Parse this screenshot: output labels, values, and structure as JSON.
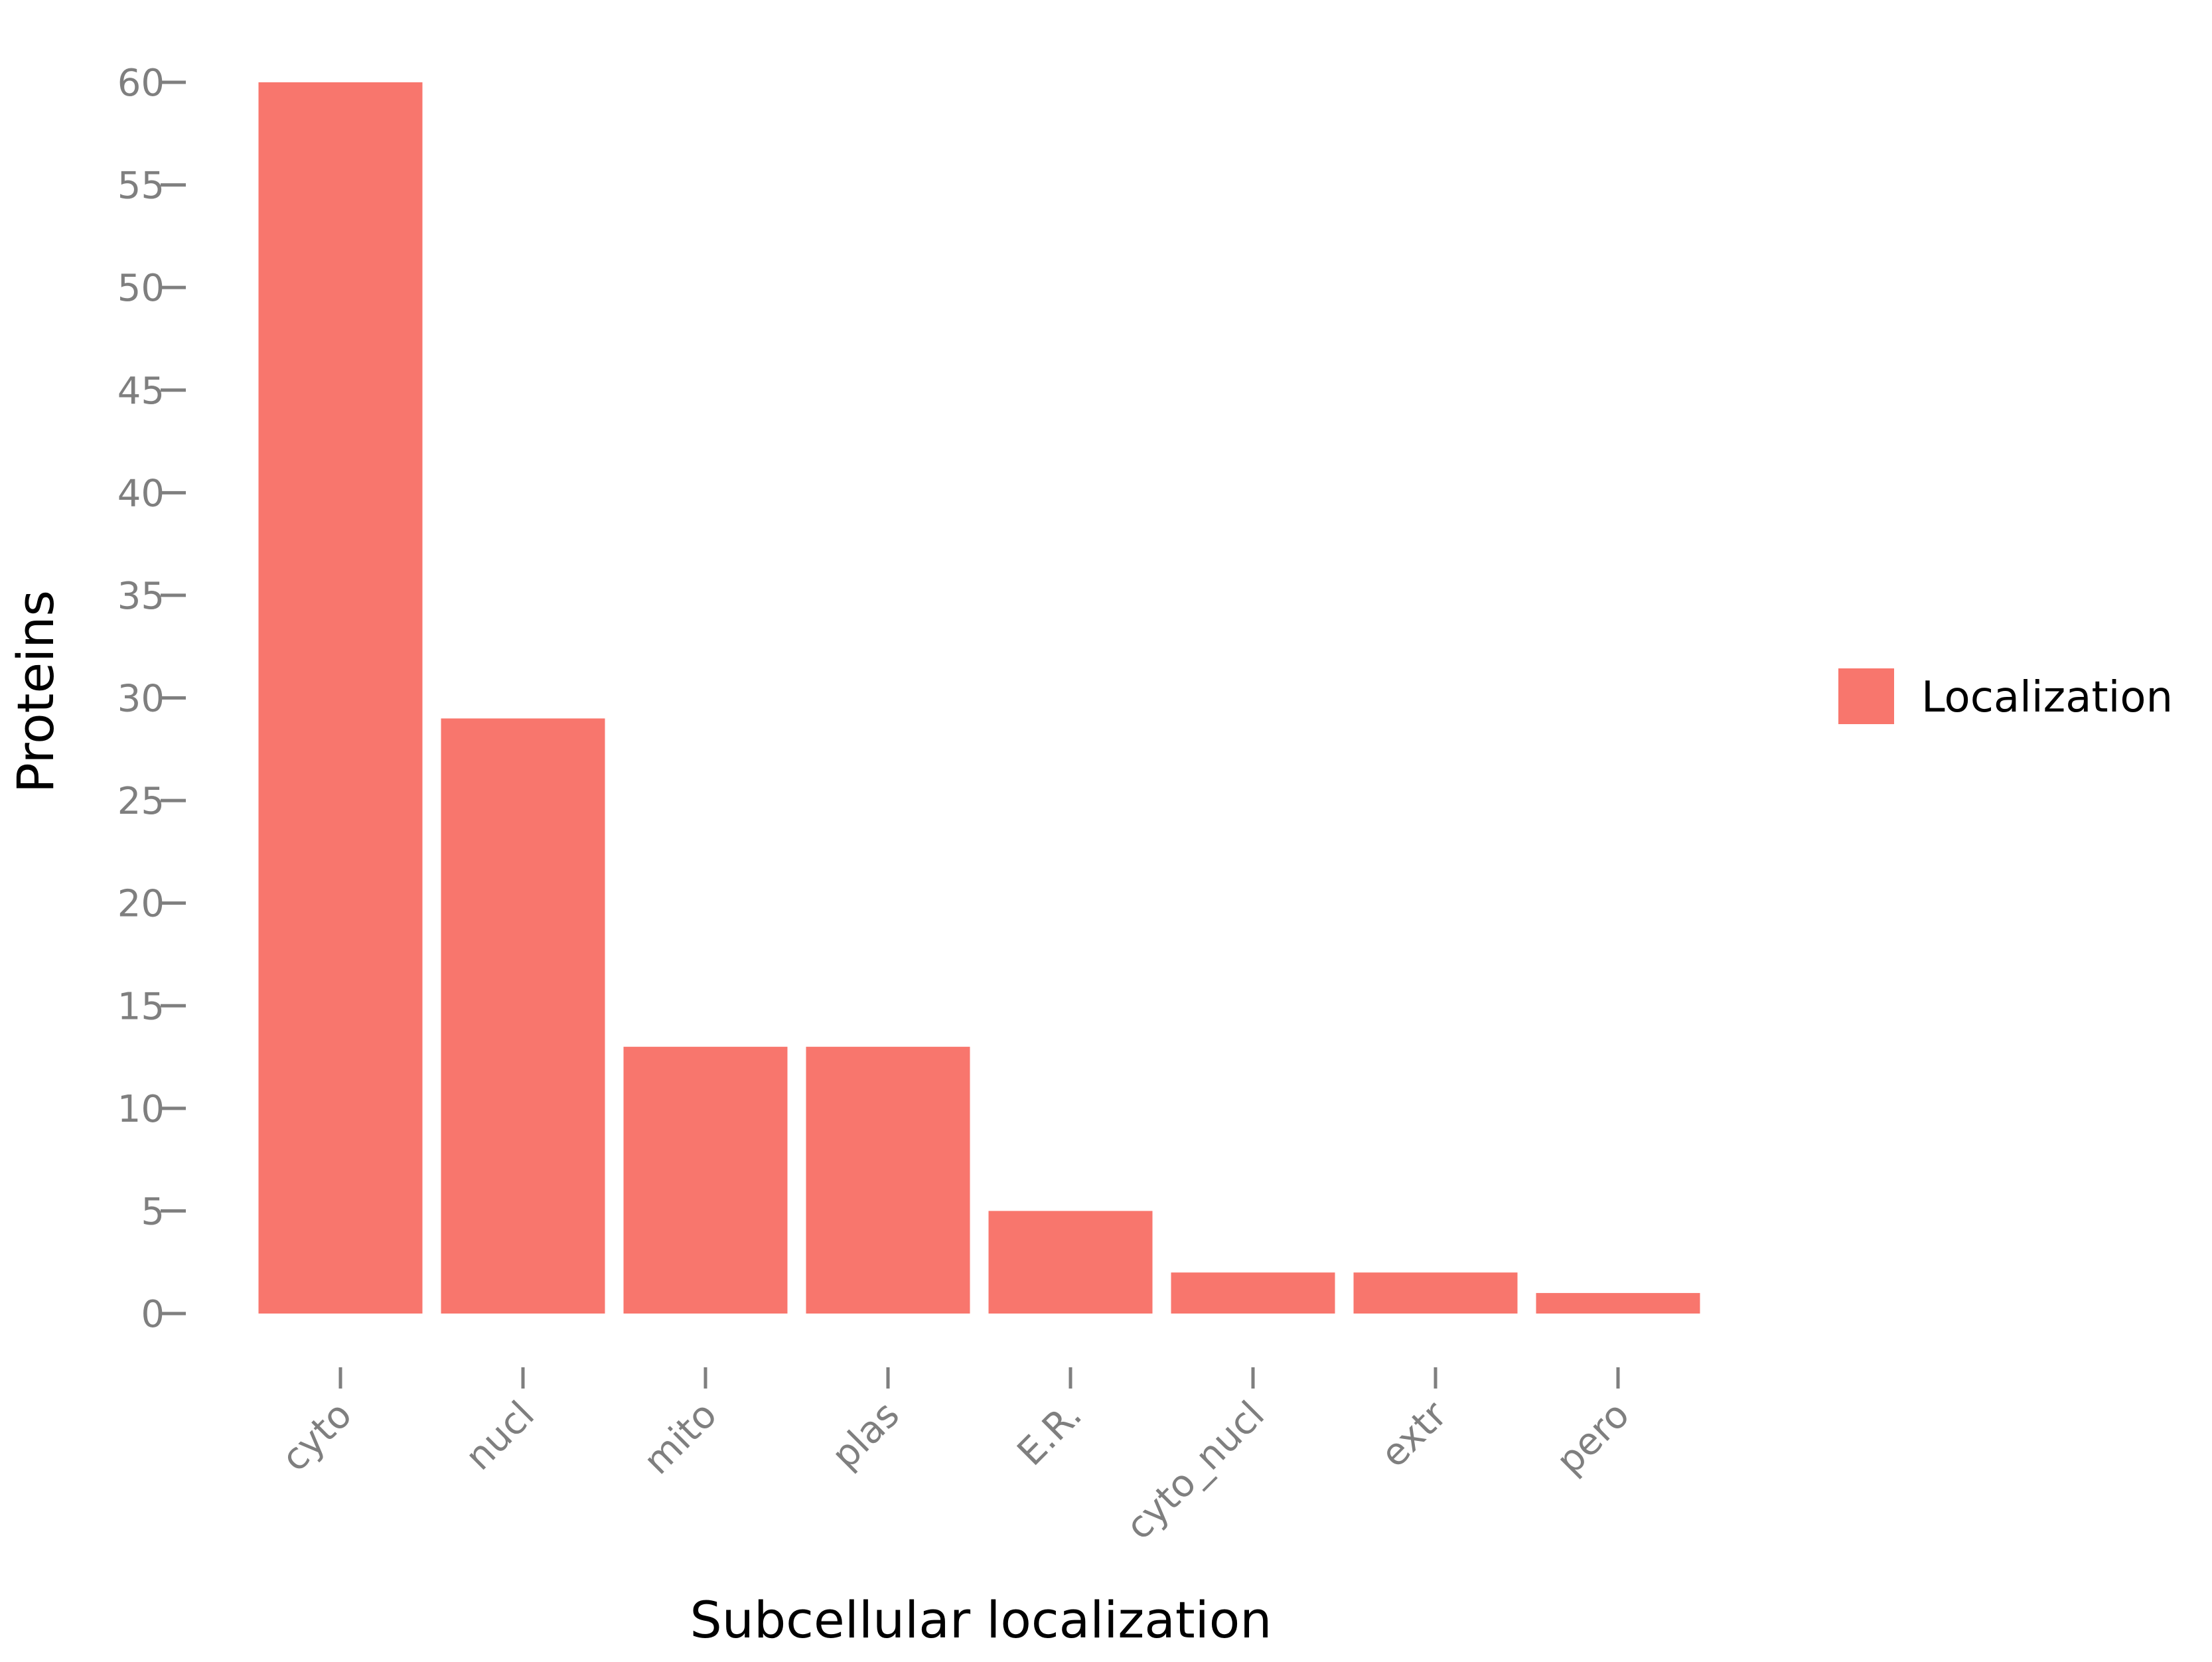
{
  "chart_data": {
    "type": "bar",
    "categories": [
      "cyto",
      "nucl",
      "mito",
      "plas",
      "E.R.",
      "cyto_nucl",
      "extr",
      "pero"
    ],
    "values": [
      60,
      29,
      13,
      13,
      5,
      2,
      2,
      1
    ],
    "xlabel": "Subcellular localization",
    "ylabel": "Proteins",
    "ylim": [
      0,
      60
    ],
    "yticks": [
      0,
      5,
      10,
      15,
      20,
      25,
      30,
      35,
      40,
      45,
      50,
      55,
      60
    ],
    "grid": false,
    "legend": {
      "position": "right",
      "entries": [
        {
          "label": "Localization",
          "color": "#f8766d"
        }
      ]
    },
    "colors": {
      "bar": "#f8766d",
      "tick": "#7f7f7f",
      "title": "#000000"
    }
  }
}
